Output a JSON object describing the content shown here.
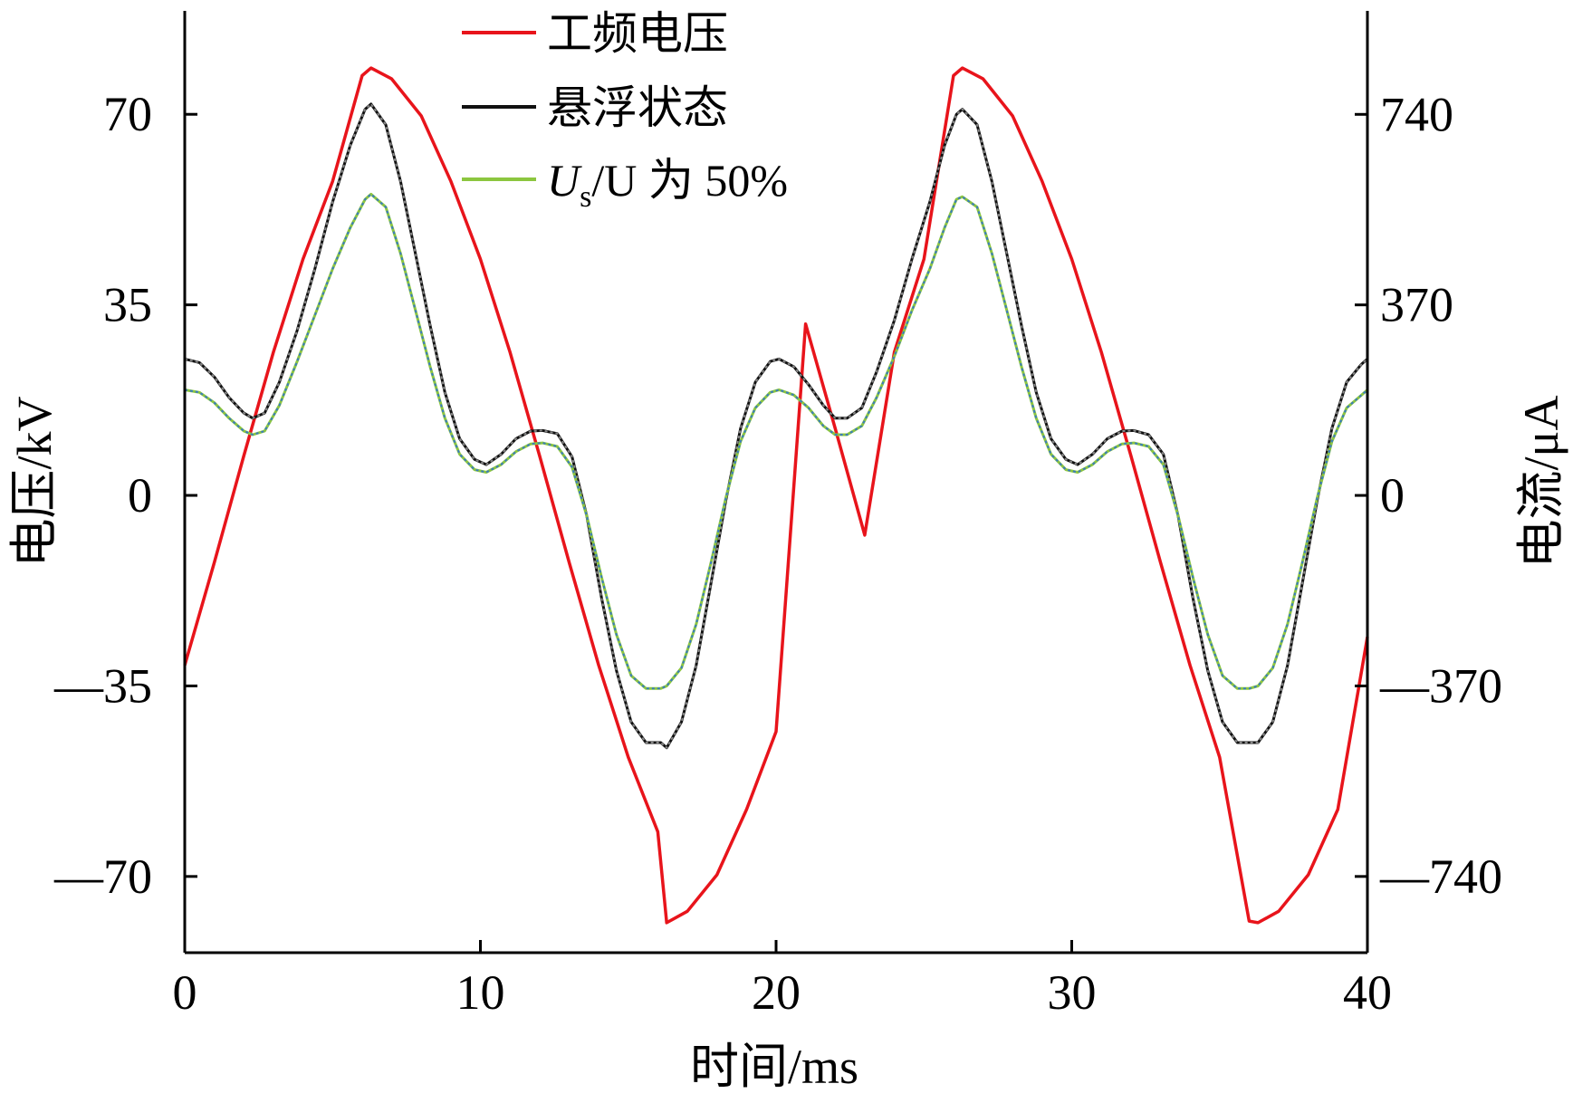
{
  "chart_data": {
    "type": "line",
    "xlabel": "时间/ms",
    "ylabel": "电压/kV",
    "y2label": "电流/μA",
    "xlim": [
      0,
      40
    ],
    "ylim": [
      -84,
      89
    ],
    "y2lim": [
      -888,
      941
    ],
    "x_ticks": [
      {
        "value": 0,
        "label": "0"
      },
      {
        "value": 10,
        "label": "10"
      },
      {
        "value": 20,
        "label": "20"
      },
      {
        "value": 30,
        "label": "30"
      },
      {
        "value": 40,
        "label": "40"
      }
    ],
    "y_ticks": [
      {
        "value": 70,
        "label": "70"
      },
      {
        "value": 35,
        "label": "35"
      },
      {
        "value": 0,
        "label": "0"
      },
      {
        "value": -35,
        "label": "—35"
      },
      {
        "value": -70,
        "label": "—70"
      }
    ],
    "y2_ticks": [
      {
        "value": 740,
        "label": "740"
      },
      {
        "value": 370,
        "label": "370"
      },
      {
        "value": 0,
        "label": "0"
      },
      {
        "value": -370,
        "label": "—370"
      },
      {
        "value": -740,
        "label": "—740"
      }
    ],
    "grid": false,
    "legend_position": "top-left",
    "legend": {
      "items": [
        {
          "label": "工频电压",
          "color": "#e8141b"
        },
        {
          "label": "悬浮状态",
          "color": "#111111"
        },
        {
          "label_main": "U",
          "label_sub": "s",
          "label_rest": "/U 为 50%",
          "color": "#8cc63f"
        }
      ]
    },
    "series": [
      {
        "name": "工频电压",
        "axis": "left",
        "color": "#e8141b",
        "x": [
          0,
          1,
          2,
          3,
          4,
          5,
          6,
          6.3,
          7,
          8,
          9,
          10,
          11,
          12,
          13,
          14,
          15,
          16,
          16.3,
          17,
          18,
          19,
          20,
          21,
          22,
          23,
          24,
          25,
          26,
          26.3,
          27,
          28,
          29,
          30,
          31,
          32,
          33,
          34,
          35,
          36,
          36.3,
          37,
          38,
          39,
          40
        ],
        "values": [
          -31.2,
          -12.3,
          7.3,
          26.3,
          43.4,
          57.7,
          77.1,
          78.5,
          76.5,
          69.7,
          57.7,
          43.4,
          26.3,
          7.3,
          -12.3,
          -31.2,
          -48.1,
          -61.8,
          -78.5,
          -76.4,
          -69.7,
          -57.7,
          -43.4,
          31.5,
          12.3,
          -7.3,
          26.3,
          43.4,
          77.1,
          78.5,
          76.5,
          69.7,
          57.7,
          43.4,
          26.3,
          7.3,
          -12.3,
          -31.2,
          -48.1,
          -78.2,
          -78.5,
          -76.4,
          -69.7,
          -57.7,
          -26.0
        ]
      },
      {
        "name": "悬浮状态",
        "axis": "right",
        "color": "#111111",
        "x": [
          0,
          0.5,
          1,
          1.5,
          2,
          2.3,
          2.7,
          3.2,
          3.8,
          4.4,
          5,
          5.6,
          6.1,
          6.3,
          6.8,
          7.3,
          7.8,
          8.3,
          8.8,
          9.3,
          9.8,
          10.2,
          10.7,
          11.2,
          11.7,
          12.1,
          12.6,
          13.1,
          13.6,
          14.1,
          14.6,
          15.1,
          15.6,
          16.1,
          16.3,
          16.8,
          17.3,
          17.8,
          18.3,
          18.8,
          19.3,
          19.8,
          20.1,
          20.6,
          21.1,
          21.6,
          22,
          22.4,
          22.9,
          23.4,
          24,
          24.6,
          25.2,
          25.7,
          26.1,
          26.3,
          26.8,
          27.3,
          27.8,
          28.3,
          28.8,
          29.3,
          29.8,
          30.2,
          30.7,
          31.2,
          31.7,
          32.1,
          32.6,
          33.1,
          33.6,
          34.1,
          34.6,
          35.1,
          35.6,
          36,
          36.3,
          36.8,
          37.3,
          37.8,
          38.3,
          38.8,
          39.3,
          39.8,
          40
        ],
        "values": [
          265,
          258,
          230,
          190,
          160,
          150,
          160,
          220,
          320,
          440,
          570,
          680,
          750,
          760,
          720,
          610,
          470,
          330,
          200,
          110,
          70,
          60,
          80,
          110,
          125,
          126,
          120,
          75,
          -40,
          -200,
          -340,
          -440,
          -480,
          -480,
          -490,
          -440,
          -330,
          -170,
          -10,
          130,
          220,
          260,
          265,
          250,
          215,
          175,
          150,
          150,
          170,
          240,
          340,
          460,
          570,
          680,
          740,
          750,
          720,
          610,
          470,
          330,
          200,
          110,
          70,
          60,
          80,
          110,
          125,
          126,
          118,
          80,
          -40,
          -200,
          -340,
          -440,
          -480,
          -480,
          -480,
          -440,
          -330,
          -170,
          -10,
          130,
          220,
          255,
          265
        ]
      },
      {
        "name": "Us/U 为 50%",
        "axis": "right",
        "color": "#8cc63f",
        "x": [
          0,
          0.5,
          1,
          1.5,
          2,
          2.3,
          2.7,
          3.2,
          3.8,
          4.4,
          5,
          5.6,
          6.1,
          6.3,
          6.8,
          7.3,
          7.8,
          8.3,
          8.8,
          9.3,
          9.8,
          10.2,
          10.7,
          11.2,
          11.7,
          12.1,
          12.6,
          13.1,
          13.6,
          14.1,
          14.6,
          15.1,
          15.6,
          16.1,
          16.3,
          16.8,
          17.3,
          17.8,
          18.3,
          18.8,
          19.3,
          19.8,
          20.1,
          20.6,
          21.1,
          21.6,
          22,
          22.4,
          22.9,
          23.4,
          24,
          24.6,
          25.2,
          25.7,
          26.1,
          26.3,
          26.8,
          27.3,
          27.8,
          28.3,
          28.8,
          29.3,
          29.8,
          30.2,
          30.7,
          31.2,
          31.7,
          32.1,
          32.6,
          33.1,
          33.6,
          34.1,
          34.6,
          35.1,
          35.6,
          36,
          36.3,
          36.8,
          37.3,
          37.8,
          38.3,
          38.8,
          39.3,
          39.8,
          40
        ],
        "values": [
          205,
          200,
          180,
          150,
          125,
          118,
          125,
          175,
          260,
          350,
          440,
          520,
          575,
          585,
          560,
          470,
          360,
          250,
          150,
          80,
          50,
          45,
          60,
          85,
          100,
          102,
          95,
          55,
          -40,
          -160,
          -270,
          -350,
          -375,
          -375,
          -370,
          -335,
          -250,
          -130,
          -5,
          105,
          170,
          200,
          205,
          195,
          170,
          135,
          118,
          118,
          135,
          190,
          270,
          360,
          440,
          520,
          575,
          580,
          560,
          470,
          360,
          250,
          150,
          80,
          50,
          45,
          60,
          85,
          100,
          102,
          95,
          60,
          -40,
          -160,
          -270,
          -350,
          -375,
          -375,
          -370,
          -335,
          -250,
          -130,
          -5,
          105,
          170,
          195,
          205
        ]
      }
    ]
  }
}
